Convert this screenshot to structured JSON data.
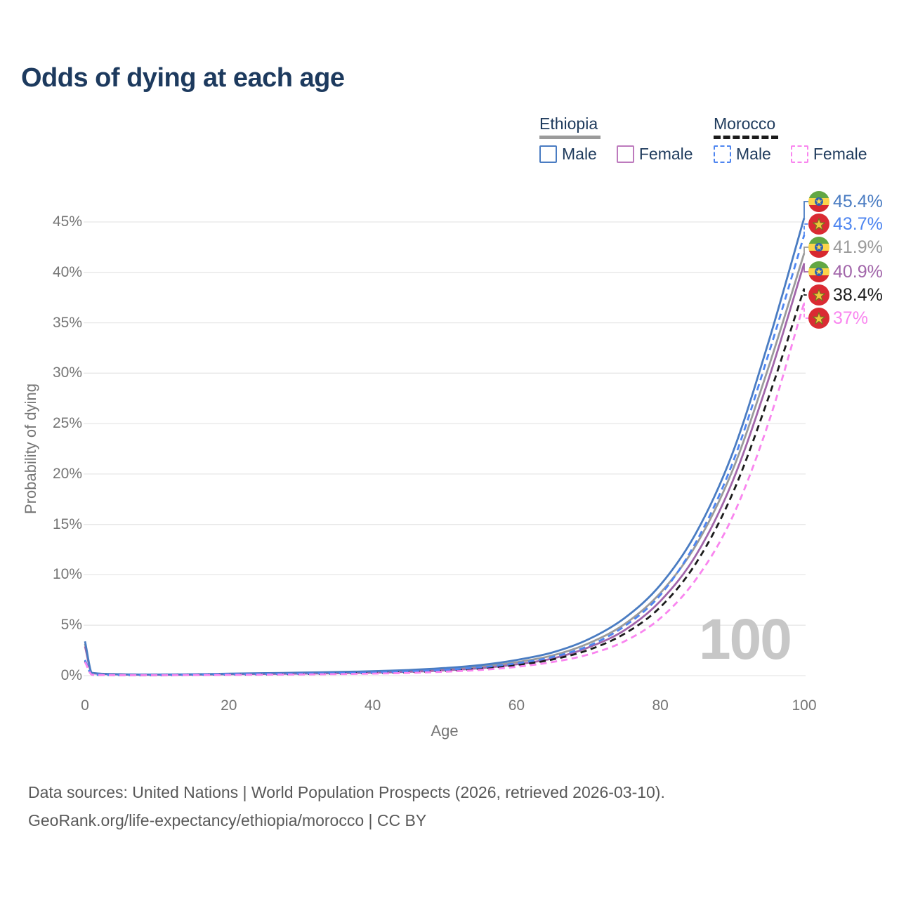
{
  "title": "Odds of dying at each age",
  "watermark": "100",
  "footer": {
    "line1": "Data sources: United Nations | World Population Prospects (2026, retrieved 2026-03-10).",
    "line2": "GeoRank.org/life-expectancy/ethiopia/morocco | CC BY"
  },
  "legend": {
    "groups": [
      {
        "country": "Ethiopia",
        "underline_color": "#9b9b9b",
        "underline_dashed": false,
        "items": [
          {
            "label": "Male",
            "color": "#4a7cc2",
            "dashed": false
          },
          {
            "label": "Female",
            "color": "#bd7abd",
            "dashed": false
          }
        ]
      },
      {
        "country": "Morocco",
        "underline_color": "#1b1b1b",
        "underline_dashed": true,
        "items": [
          {
            "label": "Male",
            "color": "#4f86f0",
            "dashed": true
          },
          {
            "label": "Female",
            "color": "#f985ef",
            "dashed": true
          }
        ]
      }
    ]
  },
  "chart_data": {
    "type": "line",
    "title": "Odds of dying at each age",
    "xlabel": "Age",
    "ylabel": "Probability of dying",
    "xlim": [
      0,
      100
    ],
    "ylim_percent": [
      0,
      45
    ],
    "grid": "horizontal",
    "x_ticks": [
      0,
      20,
      40,
      60,
      80,
      100
    ],
    "y_ticks_percent": [
      0,
      5,
      10,
      15,
      20,
      25,
      30,
      35,
      40,
      45
    ],
    "ages": [
      0,
      1,
      5,
      10,
      15,
      20,
      25,
      30,
      35,
      40,
      45,
      50,
      55,
      60,
      65,
      70,
      75,
      80,
      85,
      90,
      95,
      100
    ],
    "series": [
      {
        "name": "Ethiopia Male",
        "country": "Ethiopia",
        "sex": "Male",
        "flag": "ethiopia",
        "color": "#4a7cc2",
        "dashed": false,
        "end_label": "45.4%",
        "values_percent": [
          3.4,
          0.28,
          0.14,
          0.11,
          0.14,
          0.2,
          0.25,
          0.3,
          0.36,
          0.44,
          0.56,
          0.75,
          1.05,
          1.55,
          2.3,
          3.6,
          5.7,
          9.0,
          14.2,
          22.0,
          33.0,
          45.4
        ]
      },
      {
        "name": "Morocco Male",
        "country": "Morocco",
        "sex": "Male",
        "flag": "morocco",
        "color": "#4f86f0",
        "dashed": true,
        "end_label": "43.7%",
        "values_percent": [
          1.55,
          0.11,
          0.06,
          0.06,
          0.09,
          0.13,
          0.16,
          0.2,
          0.24,
          0.31,
          0.42,
          0.58,
          0.83,
          1.22,
          1.85,
          2.95,
          4.9,
          8.0,
          13.3,
          21.0,
          31.8,
          43.7
        ]
      },
      {
        "name": "Ethiopia",
        "country": "Ethiopia",
        "sex": "Both",
        "flag": "ethiopia",
        "color": "#9b9b9b",
        "dashed": false,
        "end_label": "41.9%",
        "values_percent": [
          3.15,
          0.26,
          0.13,
          0.1,
          0.12,
          0.17,
          0.21,
          0.25,
          0.3,
          0.37,
          0.47,
          0.63,
          0.9,
          1.33,
          2.0,
          3.2,
          5.1,
          8.2,
          13.0,
          20.3,
          30.5,
          41.9
        ]
      },
      {
        "name": "Ethiopia Female",
        "country": "Ethiopia",
        "sex": "Female",
        "flag": "ethiopia",
        "color": "#a266aa",
        "dashed": false,
        "end_label": "40.9%",
        "values_percent": [
          2.9,
          0.24,
          0.12,
          0.09,
          0.1,
          0.14,
          0.17,
          0.2,
          0.24,
          0.3,
          0.38,
          0.52,
          0.74,
          1.12,
          1.7,
          2.8,
          4.5,
          7.4,
          12.0,
          19.2,
          29.3,
          40.9
        ]
      },
      {
        "name": "Morocco",
        "country": "Morocco",
        "sex": "Both",
        "flag": "morocco",
        "color": "#1b1b1b",
        "dashed": true,
        "end_label": "38.4%",
        "values_percent": [
          1.45,
          0.1,
          0.055,
          0.05,
          0.08,
          0.11,
          0.13,
          0.16,
          0.2,
          0.26,
          0.35,
          0.49,
          0.71,
          1.06,
          1.6,
          2.55,
          4.15,
          6.8,
          11.2,
          18.0,
          27.5,
          38.4
        ]
      },
      {
        "name": "Morocco Female",
        "country": "Morocco",
        "sex": "Female",
        "flag": "morocco",
        "color": "#f985ef",
        "dashed": true,
        "end_label": "37%",
        "values_percent": [
          1.35,
          0.09,
          0.05,
          0.045,
          0.06,
          0.08,
          0.1,
          0.12,
          0.15,
          0.2,
          0.27,
          0.39,
          0.57,
          0.87,
          1.35,
          2.1,
          3.4,
          5.7,
          9.6,
          15.7,
          25.0,
          37.0
        ]
      }
    ]
  }
}
